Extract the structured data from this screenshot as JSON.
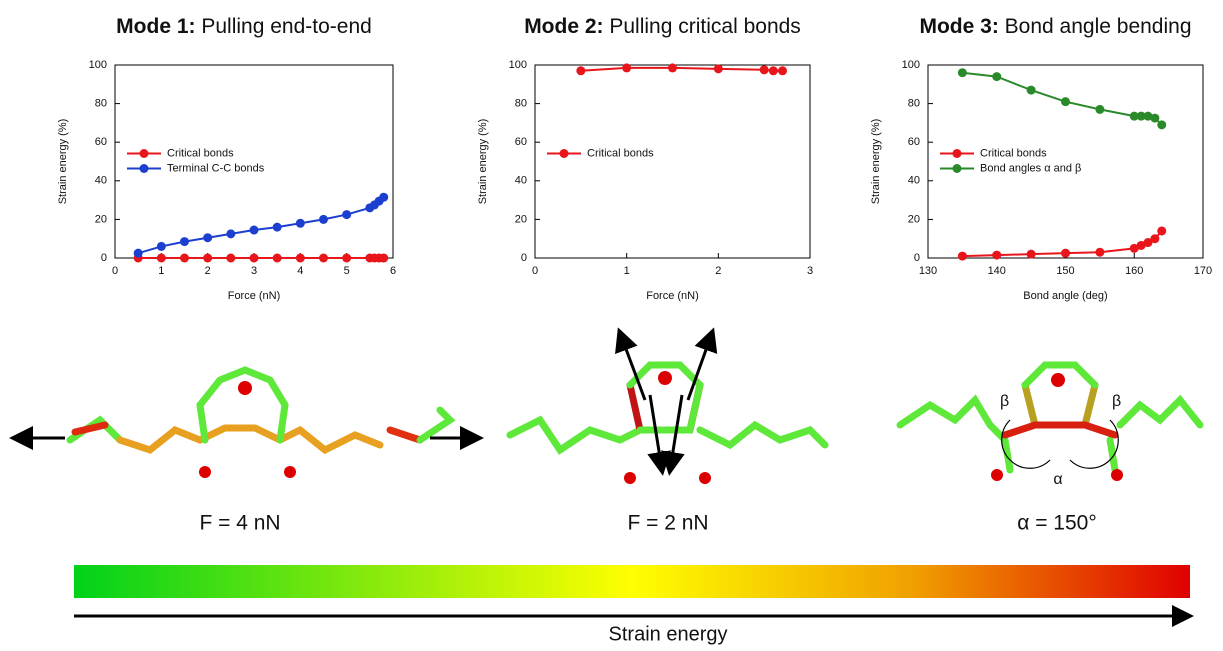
{
  "chart_data": [
    {
      "type": "line",
      "title": "Mode 1: Pulling end-to-end",
      "xlabel": "Force (nN)",
      "ylabel": "Strain energy (%)",
      "x": [
        0.5,
        1,
        1.5,
        2,
        2.5,
        3,
        3.5,
        4,
        4.5,
        5,
        5.5,
        5.6,
        5.7,
        5.8
      ],
      "series": [
        {
          "name": "Critical bonds",
          "color": "#e8151b",
          "values": [
            0,
            0,
            0,
            0,
            0,
            0,
            0,
            0,
            0,
            0,
            0,
            0,
            0,
            0
          ]
        },
        {
          "name": "Terminal C-C bonds",
          "color": "#1c3fd0",
          "values": [
            2.5,
            6,
            8.5,
            10.5,
            12.5,
            14.5,
            16,
            18,
            20,
            22.5,
            26,
            27.5,
            29.5,
            31.5
          ]
        }
      ],
      "xlim": [
        0,
        6
      ],
      "xticks": [
        0,
        1,
        2,
        3,
        4,
        5,
        6
      ],
      "ylim": [
        0,
        100
      ],
      "yticks": [
        0,
        20,
        40,
        60,
        80,
        100
      ],
      "legend": "center left"
    },
    {
      "type": "line",
      "title": "Mode 2: Pulling critical bonds",
      "xlabel": "Force (nN)",
      "ylabel": "Strain energy (%)",
      "x": [
        0.5,
        1,
        1.5,
        2,
        2.5,
        2.6,
        2.7
      ],
      "series": [
        {
          "name": "Critical bonds",
          "color": "#e8151b",
          "values": [
            97,
            98.5,
            98.5,
            98,
            97.5,
            97,
            97
          ]
        }
      ],
      "xlim": [
        0,
        3
      ],
      "xticks": [
        0,
        1,
        2,
        3
      ],
      "ylim": [
        0,
        100
      ],
      "yticks": [
        0,
        20,
        40,
        60,
        80,
        100
      ],
      "legend": "center left"
    },
    {
      "type": "line",
      "title": "Mode 3: Bond angle bending",
      "xlabel": "Bond angle (deg)",
      "ylabel": "Strain energy (%)",
      "x": [
        135,
        140,
        145,
        150,
        155,
        160,
        161,
        162,
        163,
        164
      ],
      "series": [
        {
          "name": "Critical bonds",
          "color": "#e8151b",
          "values": [
            1,
            1.5,
            2,
            2.5,
            3,
            5,
            6.5,
            8,
            10,
            14
          ]
        },
        {
          "name": "Bond angles α and β",
          "color": "#2a8a2a",
          "values": [
            96,
            94,
            87,
            81,
            77,
            73.5,
            73.5,
            73.5,
            72.5,
            69
          ]
        }
      ],
      "xlim": [
        130,
        170
      ],
      "xticks": [
        130,
        140,
        150,
        160,
        170
      ],
      "ylim": [
        0,
        100
      ],
      "yticks": [
        0,
        20,
        40,
        60,
        80,
        100
      ],
      "legend": "center left"
    }
  ],
  "figure": {
    "captions": [
      "F = 4 nN",
      "F = 2 nN",
      "α = 150°"
    ],
    "molecule_labels": [
      "β",
      "β",
      "α"
    ],
    "colorbar_label": "Strain energy"
  }
}
